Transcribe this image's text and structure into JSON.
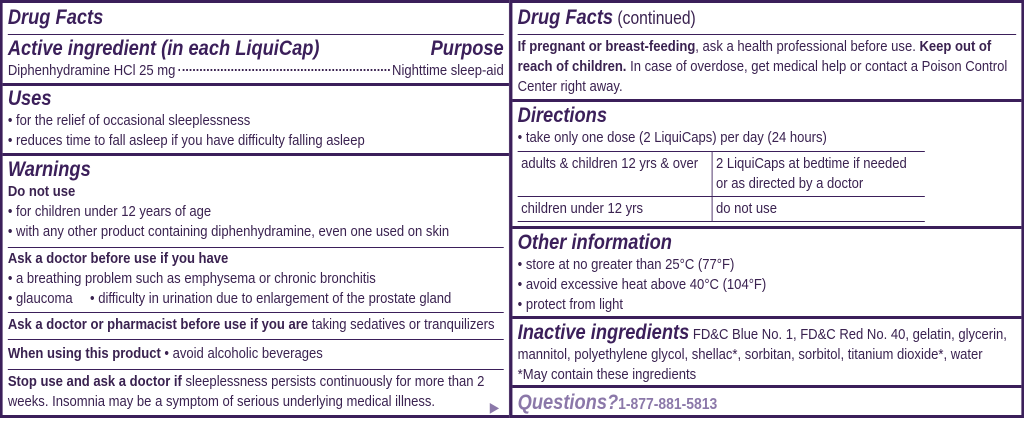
{
  "left": {
    "title": "Drug Facts",
    "active_heading": "Active ingredient (in each LiquiCap)",
    "purpose_heading": "Purpose",
    "active_ingredient": "Diphenhydramine HCl 25 mg",
    "purpose": "Nighttime sleep-aid",
    "uses_heading": "Uses",
    "uses": [
      "• for the relief of occasional sleeplessness",
      "• reduces time to fall asleep if you have difficulty falling asleep"
    ],
    "warnings_heading": "Warnings",
    "do_not_use_heading": "Do not use",
    "do_not_use": [
      "• for children under 12 years of age",
      "• with any other product containing diphenhydramine, even one used on skin"
    ],
    "ask_doctor_heading": "Ask a doctor before use if you have",
    "ask_doctor": [
      "• a breathing problem such as emphysema or chronic bronchitis",
      "• glaucoma",
      "• difficulty in urination due to enlargement of the prostate gland"
    ],
    "ask_pharmacist_heading": "Ask a doctor or pharmacist before use if you are",
    "ask_pharmacist_text": " taking sedatives or tranquilizers",
    "when_using_heading": "When using this product",
    "when_using_text": " • avoid alcoholic beverages",
    "stop_use_heading": "Stop use and ask a doctor if",
    "stop_use_text": " sleeplessness persists continuously for more than 2 weeks. Insomnia may be a symptom of serious underlying medical illness.",
    "continue_arrow": "▶"
  },
  "right": {
    "title": "Drug Facts",
    "title_suffix": " (continued)",
    "pregnant_bold": "If pregnant or breast-feeding",
    "pregnant_text": ", ask a health professional before use. ",
    "keep_out_bold": "Keep out of reach of children.",
    "overdose_text": " In case of overdose, get medical help or contact a Poison Control Center right away.",
    "directions_heading": "Directions",
    "directions_bullet": "• take only one dose (2 LiquiCaps) per day (24 hours)",
    "directions_table": [
      [
        "adults & children 12 yrs & over",
        "2 LiquiCaps at bedtime if needed or as directed by a doctor"
      ],
      [
        "children under 12 yrs",
        "do not use"
      ]
    ],
    "other_heading": "Other information",
    "other": [
      "• store at no greater than 25°C (77°F)",
      "• avoid excessive heat above 40°C (104°F)",
      "• protect from light"
    ],
    "inactive_heading": "Inactive ingredients",
    "inactive_text": " FD&C Blue No. 1, FD&C Red No. 40, gelatin, glycerin, mannitol, polyethylene glycol, shellac*, sorbitan, sorbitol, titanium dioxide*, water",
    "inactive_note": "*May contain these ingredients",
    "questions_heading": "Questions?",
    "phone": "1-877-881-5813"
  },
  "colors": {
    "border": "#3b1f5a",
    "text": "#3a2250",
    "questions": "#8b78a9"
  }
}
